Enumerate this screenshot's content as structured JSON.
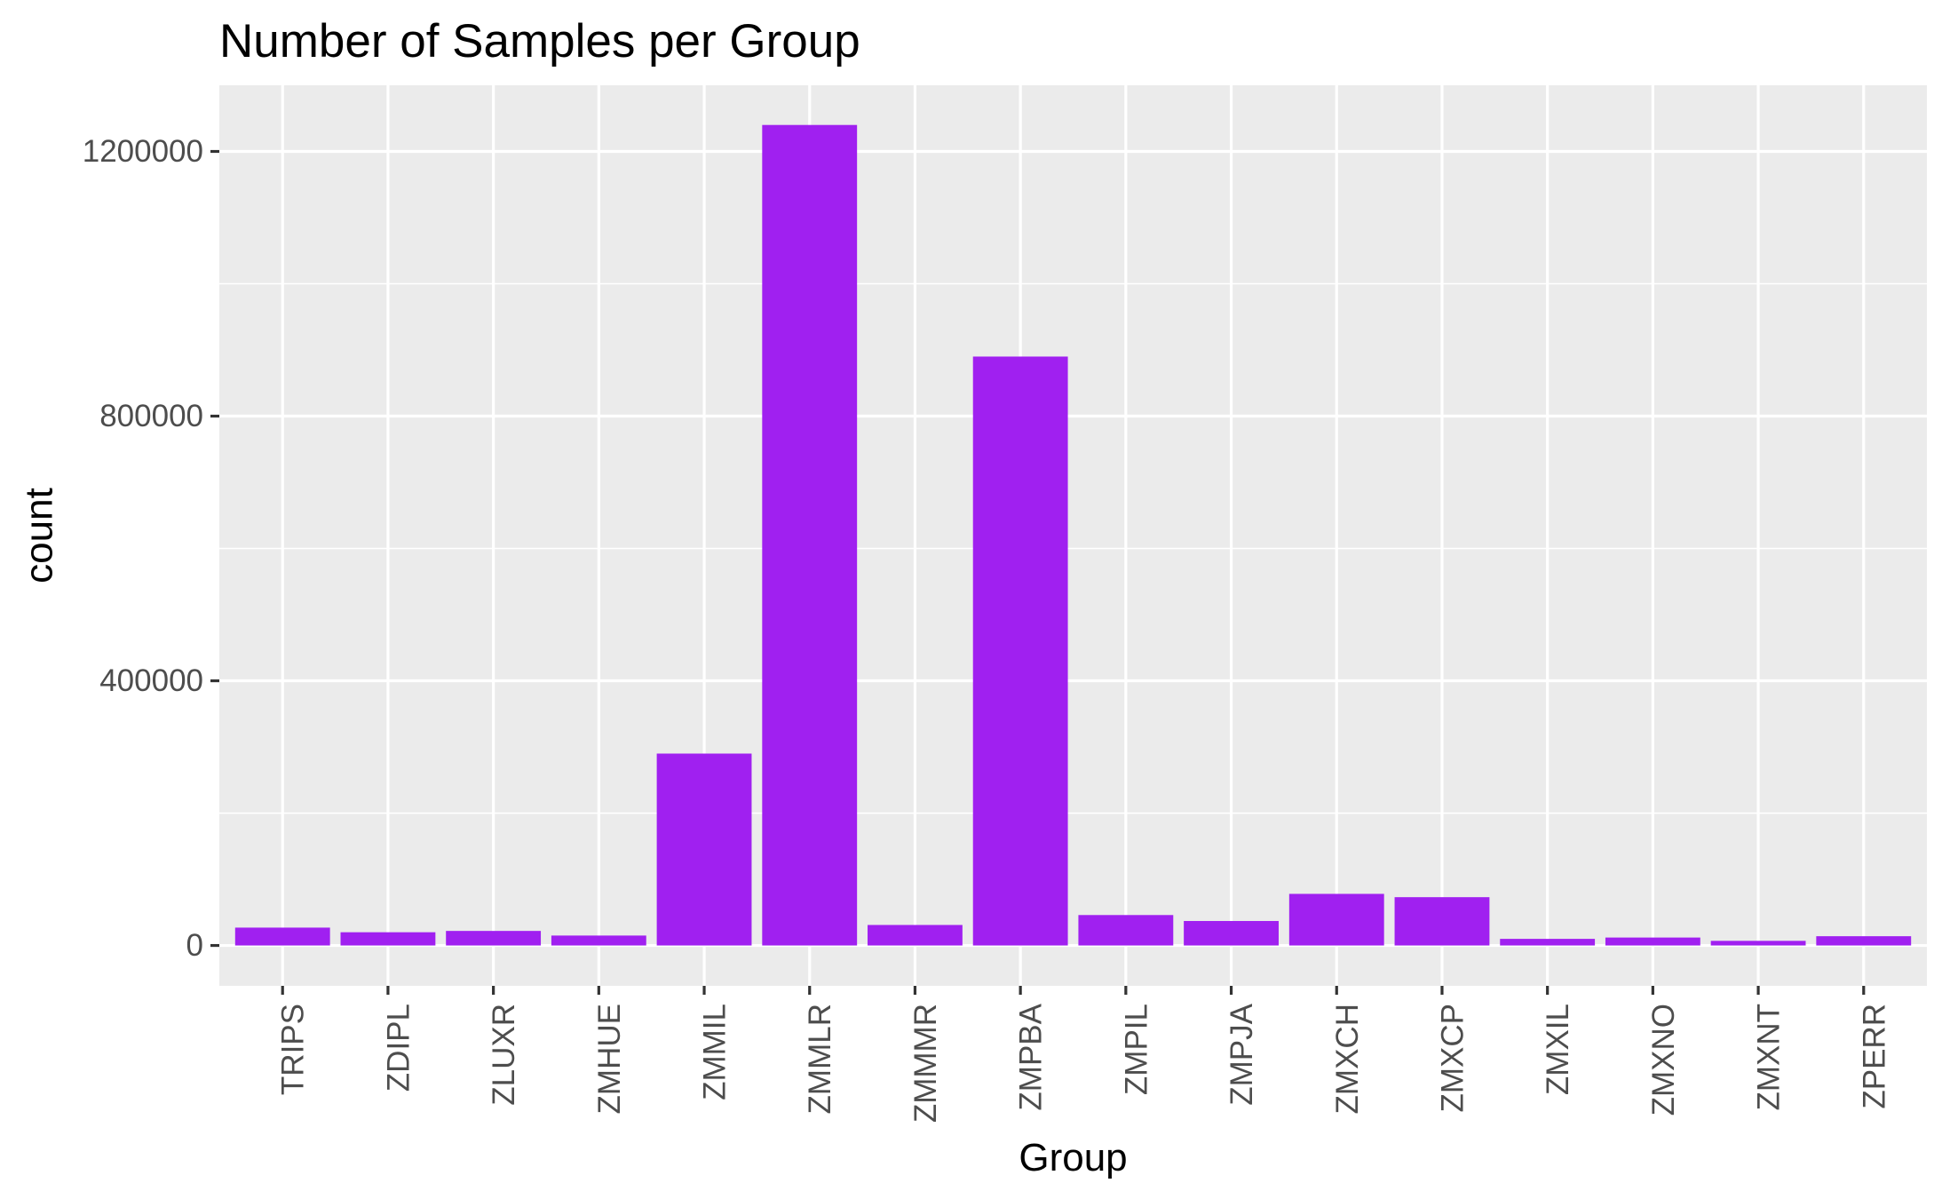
{
  "chart_data": {
    "type": "bar",
    "title": "Number of Samples per Group",
    "xlabel": "Group",
    "ylabel": "count",
    "categories": [
      "TRIPS",
      "ZDIPL",
      "ZLUXR",
      "ZMHUE",
      "ZMMIL",
      "ZMMLR",
      "ZMMMR",
      "ZMPBA",
      "ZMPIL",
      "ZMPJA",
      "ZMXCH",
      "ZMXCP",
      "ZMXIL",
      "ZMXNO",
      "ZMXNT",
      "ZPERR"
    ],
    "values": [
      27000,
      20000,
      22000,
      15000,
      290000,
      1240000,
      31000,
      890000,
      46000,
      37000,
      78000,
      73000,
      10000,
      12000,
      7000,
      14000
    ],
    "ylim": [
      -61000,
      1300000
    ],
    "yticks": [
      0,
      400000,
      800000,
      1200000
    ],
    "ytick_labels": [
      "0",
      "400000",
      "800000",
      "1200000"
    ],
    "grid": true,
    "legend": "none",
    "colors": {
      "bar": "#a020f0",
      "panel": "#ebebeb",
      "grid": "#ffffff",
      "tick": "#333333",
      "tick_label": "#4d4d4d",
      "text": "#000000"
    }
  }
}
